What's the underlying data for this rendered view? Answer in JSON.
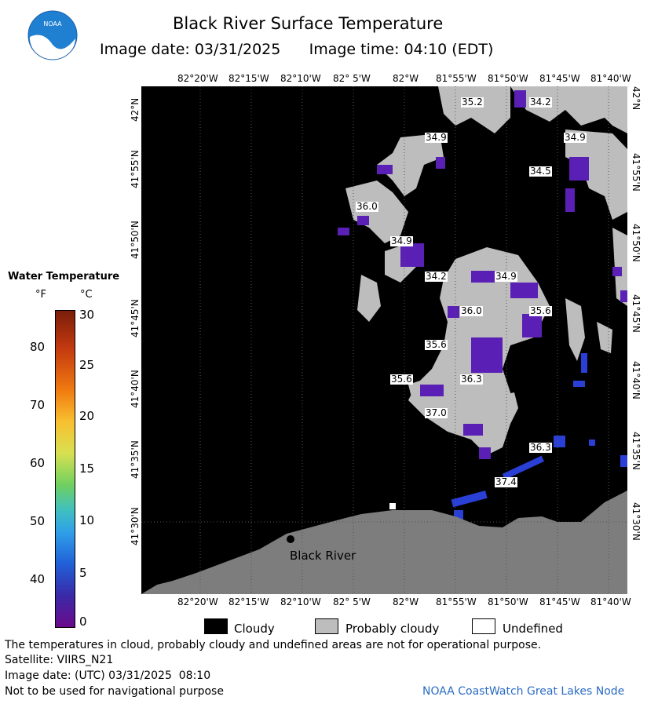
{
  "header": {
    "title": "Black River Surface Temperature",
    "image_date_label": "Image date: 03/31/2025",
    "image_time_label": "Image time: 04:10 (EDT)"
  },
  "logo": {
    "text": "NOAA"
  },
  "map": {
    "lon_labels": [
      "82°20'W",
      "82°15'W",
      "82°10'W",
      "82° 5'W",
      "82°W",
      "81°55'W",
      "81°50'W",
      "81°45'W",
      "81°40'W"
    ],
    "lat_labels": [
      "42°N",
      "41°55'N",
      "41°50'N",
      "41°45'N",
      "41°40'N",
      "41°35'N",
      "41°30'N"
    ],
    "temperature_labels_c": [
      "35.2",
      "34.2",
      "34.9",
      "34.9",
      "34.5",
      "36.0",
      "34.9",
      "34.2",
      "34.9",
      "36.0",
      "35.6",
      "35.6",
      "35.6",
      "36.3",
      "37.0",
      "36.3",
      "37.4"
    ],
    "place_label": "Black River",
    "colors": {
      "cloudy": "#000000",
      "probably_cloudy": "#bdbdbd",
      "land": "#7d7d7d",
      "cold_water": "#5a1fb4",
      "blue_water": "#2a3fd6"
    }
  },
  "legend": {
    "title": "Water Temperature",
    "unit_f": "°F",
    "unit_c": "°C",
    "f_ticks": [
      "80",
      "70",
      "60",
      "50",
      "40"
    ],
    "c_ticks": [
      "30",
      "25",
      "20",
      "15",
      "10",
      "5",
      "0"
    ]
  },
  "key": {
    "cloudy": "Cloudy",
    "probably_cloudy": "Probably cloudy",
    "undefined": "Undefined"
  },
  "footer": {
    "disclaimer": "The temperatures in cloud, probably cloudy and undefined areas are not for operational purpose.",
    "satellite": "Satellite: VIIRS_N21",
    "utc_date": "Image date: (UTC) 03/31/2025  08:10",
    "nav_warning": "Not to be used for navigational purpose",
    "node": "NOAA CoastWatch Great Lakes Node"
  }
}
